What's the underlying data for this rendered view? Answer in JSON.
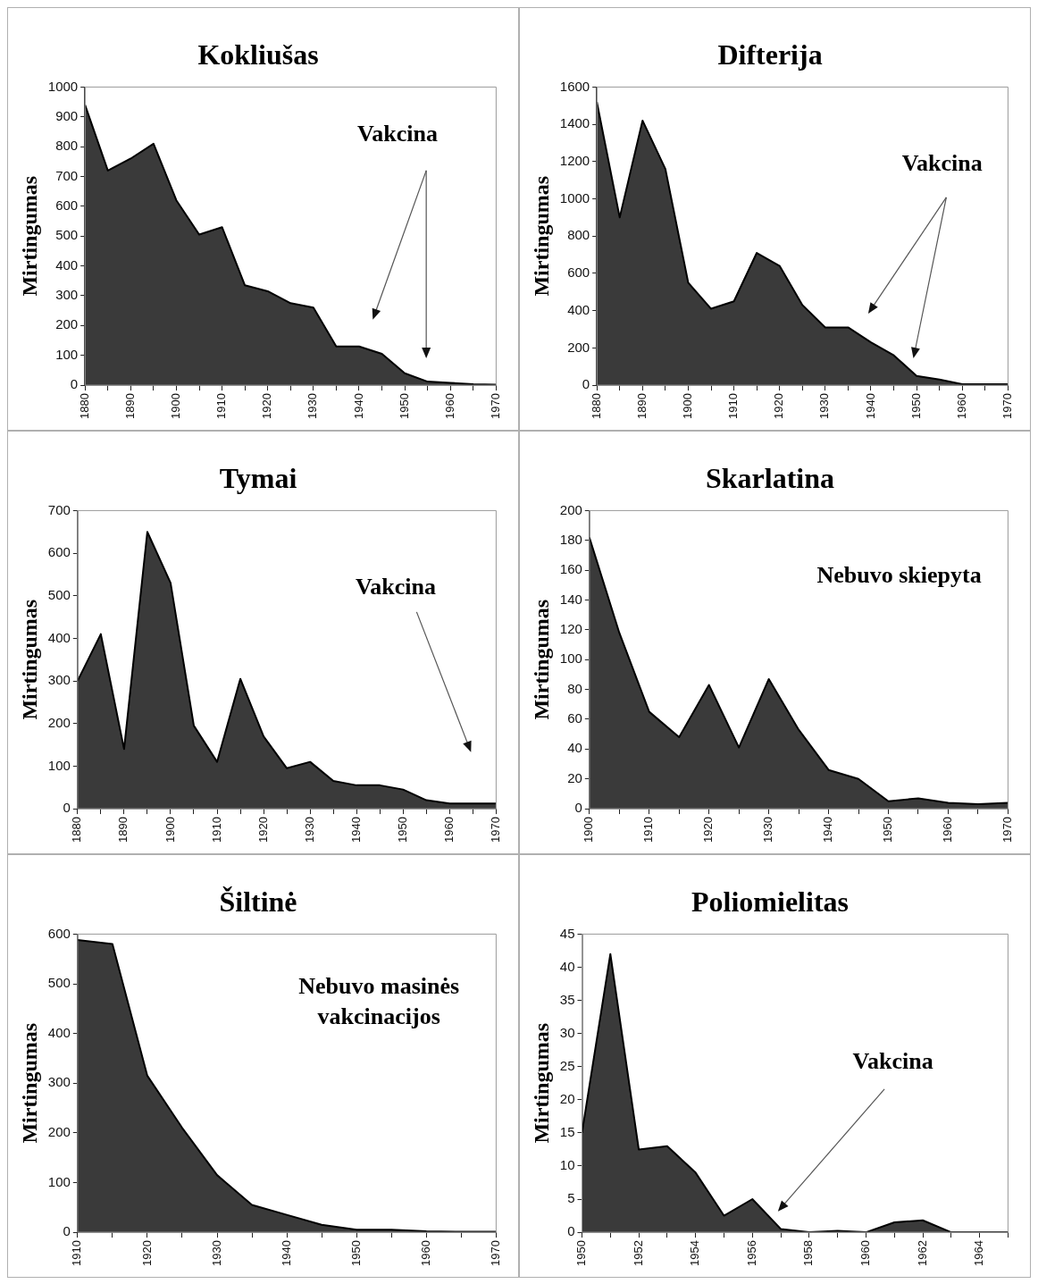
{
  "chart_data": [
    {
      "type": "area",
      "title": "Kokliušas",
      "ylabel": "Mirtingumas",
      "annotations": [
        "Vakcina"
      ],
      "x": [
        1880,
        1885,
        1890,
        1895,
        1900,
        1905,
        1910,
        1915,
        1920,
        1925,
        1930,
        1935,
        1940,
        1945,
        1950,
        1955,
        1960,
        1965,
        1970
      ],
      "series": [
        {
          "color": "#3a3a3a",
          "values": [
            940,
            720,
            760,
            810,
            620,
            505,
            530,
            335,
            315,
            275,
            260,
            130,
            130,
            105,
            40,
            12,
            8,
            3,
            2
          ]
        }
      ],
      "xlim": [
        1880,
        1970
      ],
      "xticks": [
        1880,
        {
          "value": 1885,
          "label": null
        },
        1890,
        {
          "value": 1895,
          "label": null
        },
        1900,
        {
          "value": 1905,
          "label": null
        },
        1910,
        {
          "value": 1915,
          "label": null
        },
        1920,
        {
          "value": 1925,
          "label": null
        },
        1930,
        {
          "value": 1935,
          "label": null
        },
        1940,
        {
          "value": 1945,
          "label": null
        },
        1950,
        {
          "value": 1955,
          "label": null
        },
        1960,
        {
          "value": 1965,
          "label": null
        },
        1970
      ],
      "ylim": [
        0,
        1000
      ],
      "yticks": [
        0,
        100,
        200,
        300,
        400,
        500,
        600,
        700,
        800,
        900,
        1000
      ],
      "grid": false,
      "legend": false
    },
    {
      "type": "area",
      "title": "Difterija",
      "ylabel": "Mirtingumas",
      "annotations": [
        "Vakcina"
      ],
      "x": [
        1880,
        1885,
        1890,
        1895,
        1900,
        1905,
        1910,
        1915,
        1920,
        1925,
        1930,
        1935,
        1940,
        1945,
        1950,
        1955,
        1960,
        1965,
        1970
      ],
      "series": [
        {
          "color": "#3a3a3a",
          "values": [
            1520,
            900,
            1420,
            1160,
            550,
            410,
            450,
            710,
            640,
            430,
            310,
            310,
            230,
            160,
            50,
            30,
            5,
            5,
            5
          ]
        }
      ],
      "xlim": [
        1880,
        1970
      ],
      "xticks": [
        1880,
        {
          "value": 1885,
          "label": null
        },
        1890,
        {
          "value": 1895,
          "label": null
        },
        1900,
        {
          "value": 1905,
          "label": null
        },
        1910,
        {
          "value": 1915,
          "label": null
        },
        1920,
        {
          "value": 1925,
          "label": null
        },
        1930,
        {
          "value": 1935,
          "label": null
        },
        1940,
        {
          "value": 1945,
          "label": null
        },
        1950,
        {
          "value": 1955,
          "label": null
        },
        1960,
        {
          "value": 1965,
          "label": null
        },
        1970
      ],
      "ylim": [
        0,
        1600
      ],
      "yticks": [
        0,
        200,
        400,
        600,
        800,
        1000,
        1200,
        1400,
        1600
      ],
      "grid": false,
      "legend": false
    },
    {
      "type": "area",
      "title": "Tymai",
      "ylabel": "Mirtingumas",
      "annotations": [
        "Vakcina"
      ],
      "x": [
        1880,
        1885,
        1890,
        1895,
        1900,
        1905,
        1910,
        1915,
        1920,
        1925,
        1930,
        1935,
        1940,
        1945,
        1950,
        1955,
        1960,
        1965,
        1970
      ],
      "series": [
        {
          "color": "#3a3a3a",
          "values": [
            300,
            410,
            140,
            650,
            530,
            195,
            110,
            305,
            170,
            95,
            110,
            65,
            55,
            55,
            45,
            20,
            12,
            12,
            12
          ]
        }
      ],
      "xlim": [
        1880,
        1970
      ],
      "xticks": [
        1880,
        {
          "value": 1885,
          "label": null
        },
        1890,
        {
          "value": 1895,
          "label": null
        },
        1900,
        {
          "value": 1905,
          "label": null
        },
        1910,
        {
          "value": 1915,
          "label": null
        },
        1920,
        {
          "value": 1925,
          "label": null
        },
        1930,
        {
          "value": 1935,
          "label": null
        },
        1940,
        {
          "value": 1945,
          "label": null
        },
        1950,
        {
          "value": 1955,
          "label": null
        },
        1960,
        {
          "value": 1965,
          "label": null
        },
        1970
      ],
      "ylim": [
        0,
        700
      ],
      "yticks": [
        0,
        100,
        200,
        300,
        400,
        500,
        600,
        700
      ],
      "grid": false,
      "legend": false
    },
    {
      "type": "area",
      "title": "Skarlatina",
      "ylabel": "Mirtingumas",
      "annotations": [
        "Nebuvo skiepyta"
      ],
      "x": [
        1900,
        1905,
        1910,
        1915,
        1920,
        1925,
        1930,
        1935,
        1940,
        1945,
        1950,
        1955,
        1960,
        1965,
        1970
      ],
      "series": [
        {
          "color": "#3a3a3a",
          "values": [
            182,
            118,
            65,
            48,
            83,
            41,
            87,
            53,
            26,
            20,
            5,
            7,
            4,
            3,
            4
          ]
        }
      ],
      "xlim": [
        1900,
        1970
      ],
      "xticks": [
        1900,
        {
          "value": 1905,
          "label": null
        },
        1910,
        {
          "value": 1915,
          "label": null
        },
        1920,
        {
          "value": 1925,
          "label": null
        },
        1930,
        {
          "value": 1935,
          "label": null
        },
        1940,
        {
          "value": 1945,
          "label": null
        },
        1950,
        {
          "value": 1955,
          "label": null
        },
        1960,
        {
          "value": 1965,
          "label": null
        },
        1970
      ],
      "ylim": [
        0,
        200
      ],
      "yticks": [
        0,
        20,
        40,
        60,
        80,
        100,
        120,
        140,
        160,
        180,
        200
      ],
      "grid": false,
      "legend": false
    },
    {
      "type": "area",
      "title": "Šiltinė",
      "ylabel": "Mirtingumas",
      "annotations": [
        "Nebuvo masinės vakcinacijos"
      ],
      "x": [
        1910,
        1915,
        1920,
        1925,
        1930,
        1935,
        1940,
        1945,
        1950,
        1955,
        1960,
        1965,
        1970
      ],
      "series": [
        {
          "color": "#3a3a3a",
          "values": [
            588,
            580,
            315,
            210,
            115,
            55,
            35,
            15,
            5,
            5,
            2,
            1,
            1
          ]
        }
      ],
      "xlim": [
        1910,
        1970
      ],
      "xticks": [
        1910,
        {
          "value": 1915,
          "label": null
        },
        1920,
        {
          "value": 1925,
          "label": null
        },
        1930,
        {
          "value": 1935,
          "label": null
        },
        1940,
        {
          "value": 1945,
          "label": null
        },
        1950,
        {
          "value": 1955,
          "label": null
        },
        1960,
        {
          "value": 1965,
          "label": null
        },
        1970
      ],
      "ylim": [
        0,
        600
      ],
      "yticks": [
        0,
        100,
        200,
        300,
        400,
        500,
        600
      ],
      "grid": false,
      "legend": false
    },
    {
      "type": "area",
      "title": "Poliomielitas",
      "ylabel": "Mirtingumas",
      "annotations": [
        "Vakcina"
      ],
      "x": [
        1950,
        1951,
        1952,
        1953,
        1954,
        1955,
        1956,
        1957,
        1958,
        1959,
        1960,
        1961,
        1962,
        1963,
        1964,
        1965
      ],
      "series": [
        {
          "color": "#3a3a3a",
          "values": [
            15,
            42,
            12.5,
            13,
            9,
            2.5,
            5,
            0.5,
            0,
            0.2,
            0,
            1.5,
            1.8,
            0,
            0,
            0
          ]
        }
      ],
      "xlim": [
        1950,
        1965
      ],
      "xticks": [
        1950,
        {
          "value": 1951,
          "label": null
        },
        1952,
        {
          "value": 1953,
          "label": null
        },
        1954,
        {
          "value": 1955,
          "label": null
        },
        1956,
        {
          "value": 1957,
          "label": null
        },
        1958,
        {
          "value": 1959,
          "label": null
        },
        1960,
        {
          "value": 1961,
          "label": null
        },
        1962,
        {
          "value": 1963,
          "label": null
        },
        1964,
        {
          "value": 1965,
          "label": null
        }
      ],
      "ylim": [
        0,
        45
      ],
      "yticks": [
        0,
        5,
        10,
        15,
        20,
        25,
        30,
        35,
        40,
        45
      ],
      "grid": false,
      "legend": false
    }
  ]
}
